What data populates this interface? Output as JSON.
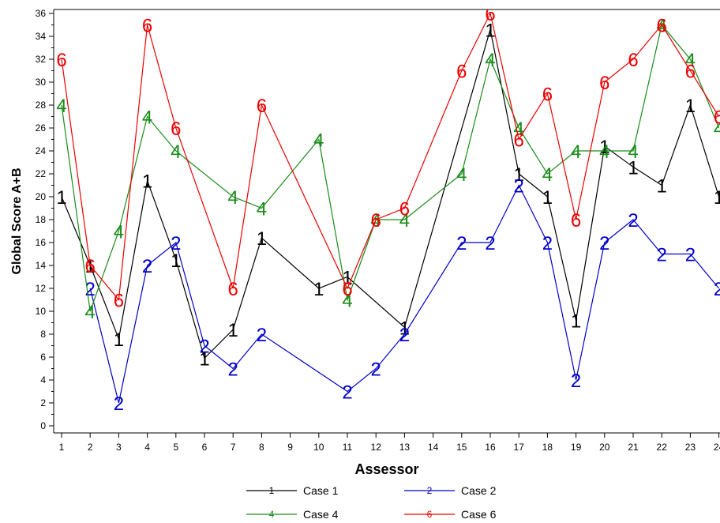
{
  "chart_data": {
    "type": "line",
    "xlabel": "Assessor",
    "ylabel": "Global Score A+B",
    "x": [
      1,
      2,
      3,
      4,
      5,
      6,
      7,
      8,
      9,
      10,
      11,
      12,
      13,
      14,
      15,
      16,
      17,
      18,
      19,
      20,
      21,
      22,
      23,
      24
    ],
    "xlim": [
      1,
      24
    ],
    "ylim": [
      0,
      36
    ],
    "yticks": [
      0,
      2,
      4,
      6,
      8,
      10,
      12,
      14,
      16,
      18,
      20,
      22,
      24,
      26,
      28,
      30,
      32,
      34,
      36
    ],
    "grid": false,
    "legend_position": "bottom",
    "series": [
      {
        "name": "Case 1",
        "marker": "1",
        "color": "#000000",
        "points": [
          [
            1,
            20
          ],
          [
            2,
            14
          ],
          [
            3,
            7.6
          ],
          [
            4,
            21.4
          ],
          [
            5,
            14.5
          ],
          [
            6,
            5.9
          ],
          [
            7,
            8.4
          ],
          [
            8,
            16.4
          ],
          [
            10,
            12
          ],
          [
            11,
            13
          ],
          [
            13,
            8.6
          ],
          [
            16,
            34.6
          ],
          [
            17,
            22
          ],
          [
            18,
            20
          ],
          [
            19,
            9.2
          ],
          [
            20,
            24.4
          ],
          [
            21,
            22.6
          ],
          [
            22,
            21
          ],
          [
            23,
            28
          ],
          [
            24,
            20
          ]
        ]
      },
      {
        "name": "Case 2",
        "marker": "2",
        "color": "#0000cc",
        "points": [
          [
            2,
            12
          ],
          [
            3,
            2
          ],
          [
            4,
            14
          ],
          [
            5,
            16
          ],
          [
            6,
            7
          ],
          [
            7,
            5
          ],
          [
            8,
            8
          ],
          [
            11,
            3
          ],
          [
            12,
            5
          ],
          [
            13,
            8
          ],
          [
            15,
            16
          ],
          [
            16,
            16
          ],
          [
            17,
            21
          ],
          [
            18,
            16
          ],
          [
            19,
            4
          ],
          [
            20,
            16
          ],
          [
            21,
            18
          ],
          [
            22,
            15
          ],
          [
            23,
            15
          ],
          [
            24,
            12
          ]
        ]
      },
      {
        "name": "Case 4",
        "marker": "4",
        "color": "#1a8c1a",
        "points": [
          [
            1,
            28
          ],
          [
            2,
            10
          ],
          [
            3,
            17
          ],
          [
            4,
            27
          ],
          [
            5,
            24
          ],
          [
            7,
            20
          ],
          [
            8,
            19
          ],
          [
            10,
            25
          ],
          [
            11,
            11
          ],
          [
            12,
            18
          ],
          [
            13,
            18
          ],
          [
            15,
            22
          ],
          [
            16,
            32
          ],
          [
            17,
            26
          ],
          [
            18,
            22
          ],
          [
            19,
            24
          ],
          [
            20,
            24
          ],
          [
            21,
            24
          ],
          [
            22,
            35
          ],
          [
            23,
            32
          ],
          [
            24,
            26
          ]
        ]
      },
      {
        "name": "Case 6",
        "marker": "6",
        "color": "#ee0000",
        "points": [
          [
            1,
            32
          ],
          [
            2,
            14
          ],
          [
            3,
            11
          ],
          [
            4,
            35
          ],
          [
            5,
            26
          ],
          [
            7,
            12
          ],
          [
            8,
            28
          ],
          [
            11,
            12
          ],
          [
            12,
            18
          ],
          [
            13,
            19
          ],
          [
            15,
            31
          ],
          [
            16,
            36
          ],
          [
            17,
            25
          ],
          [
            18,
            29
          ],
          [
            19,
            18
          ],
          [
            20,
            30
          ],
          [
            21,
            32
          ],
          [
            22,
            35
          ],
          [
            23,
            31
          ],
          [
            24,
            27
          ]
        ]
      }
    ]
  }
}
